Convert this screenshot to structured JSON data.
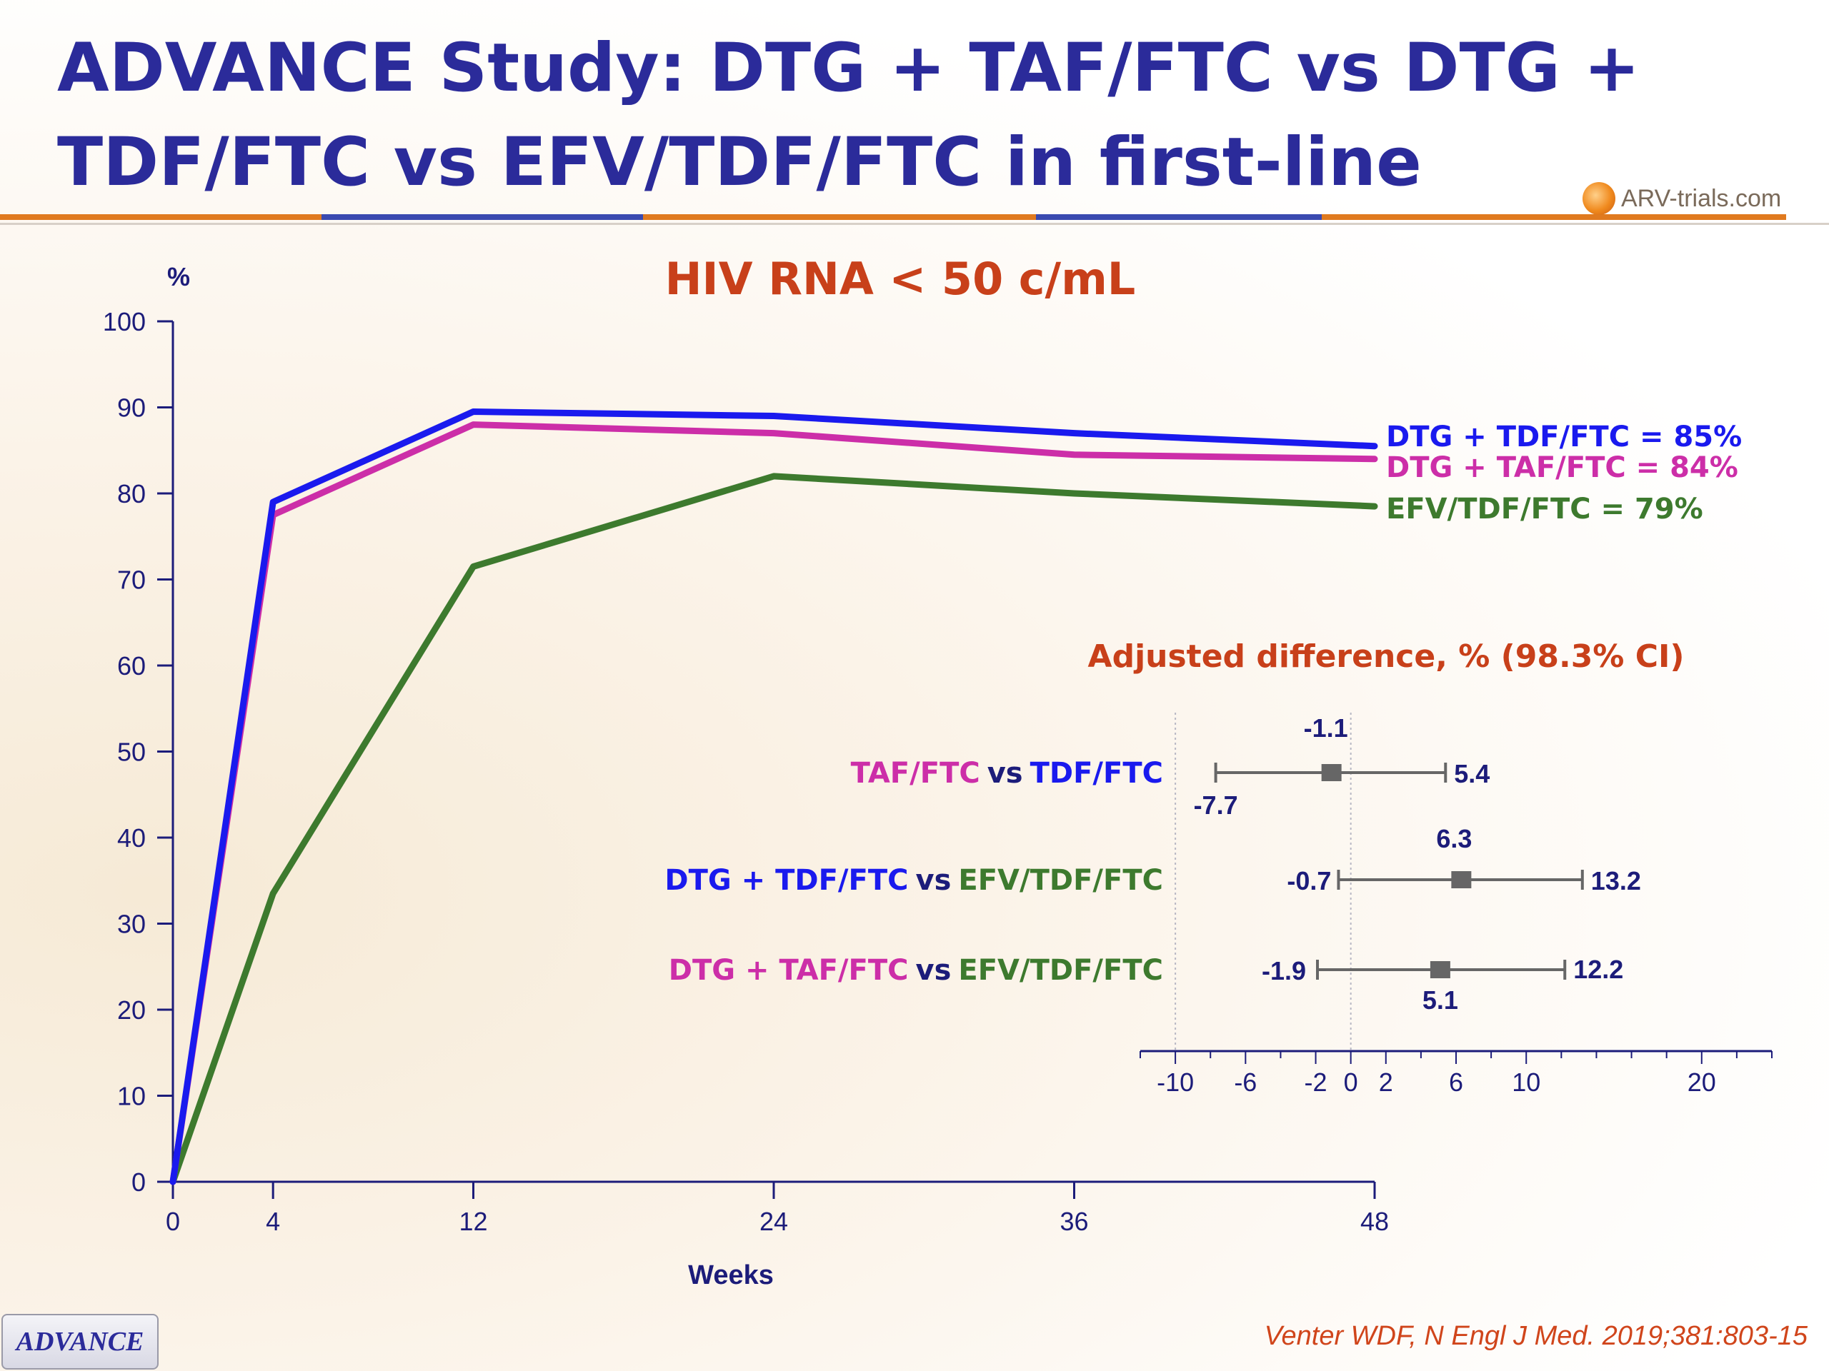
{
  "slide": {
    "title": "ADVANCE Study: DTG + TAF/FTC vs DTG + TDF/FTC vs EFV/TDF/FTC in first-line",
    "logo_text": "ARV-trials.com",
    "badge": "ADVANCE",
    "citation": "Venter WDF, N Engl J Med. 2019;381:803-15"
  },
  "colors": {
    "dtg_tdf": "#1a1aee",
    "dtg_taf": "#cc2ea8",
    "efv": "#3d7a2e",
    "navy": "#1c1c7a",
    "orange_title": "#c8401a"
  },
  "chart_data": [
    {
      "type": "line",
      "title": "HIV RNA < 50 c/mL",
      "xlabel": "Weeks",
      "ylabel": "%",
      "x": [
        0,
        4,
        12,
        24,
        36,
        48
      ],
      "xlim": [
        0,
        48
      ],
      "ylim": [
        0,
        100
      ],
      "yticks": [
        0,
        10,
        20,
        30,
        40,
        50,
        60,
        70,
        80,
        90,
        100
      ],
      "xticks": [
        0,
        4,
        12,
        24,
        36,
        48
      ],
      "series": [
        {
          "name": "DTG + TDF/FTC",
          "label": "DTG + TDF/FTC = 85%",
          "color": "#1a1aee",
          "values": [
            0,
            79,
            89.5,
            89,
            87,
            85.5
          ]
        },
        {
          "name": "DTG + TAF/FTC",
          "label": "DTG + TAF/FTC = 84%",
          "color": "#cc2ea8",
          "values": [
            0,
            77.5,
            88,
            87,
            84.5,
            84
          ]
        },
        {
          "name": "EFV/TDF/FTC",
          "label": "EFV/TDF/FTC = 79%",
          "color": "#3d7a2e",
          "values": [
            0,
            33.5,
            71.5,
            82,
            80,
            78.5
          ]
        }
      ],
      "grid": false,
      "legend": "right"
    },
    {
      "type": "forest",
      "title": "Adjusted difference, % (98.3% CI)",
      "xlim": [
        -12,
        24
      ],
      "xticks": [
        -10,
        -6,
        -2,
        0,
        2,
        6,
        10,
        20
      ],
      "reference_lines": [
        -10,
        0
      ],
      "rows": [
        {
          "left": "TAF/FTC",
          "vs": "vs",
          "right": "TDF/FTC",
          "left_color": "#cc2ea8",
          "right_color": "#1a1aee",
          "estimate": -1.1,
          "lower": -7.7,
          "upper": 5.4,
          "estimate_label": "-1.1",
          "lower_label": "-7.7",
          "upper_label": "5.4"
        },
        {
          "left": "DTG + TDF/FTC",
          "vs": "vs",
          "right": "EFV/TDF/FTC",
          "left_color": "#1a1aee",
          "right_color": "#3d7a2e",
          "estimate": 6.3,
          "lower": -0.7,
          "upper": 13.2,
          "estimate_label": "6.3",
          "lower_label": "-0.7",
          "upper_label": "13.2"
        },
        {
          "left": "DTG + TAF/FTC",
          "vs": "vs",
          "right": "EFV/TDF/FTC",
          "left_color": "#cc2ea8",
          "right_color": "#3d7a2e",
          "estimate": 5.1,
          "lower": -1.9,
          "upper": 12.2,
          "estimate_label": "5.1",
          "lower_label": "-1.9",
          "upper_label": "12.2"
        }
      ]
    }
  ]
}
